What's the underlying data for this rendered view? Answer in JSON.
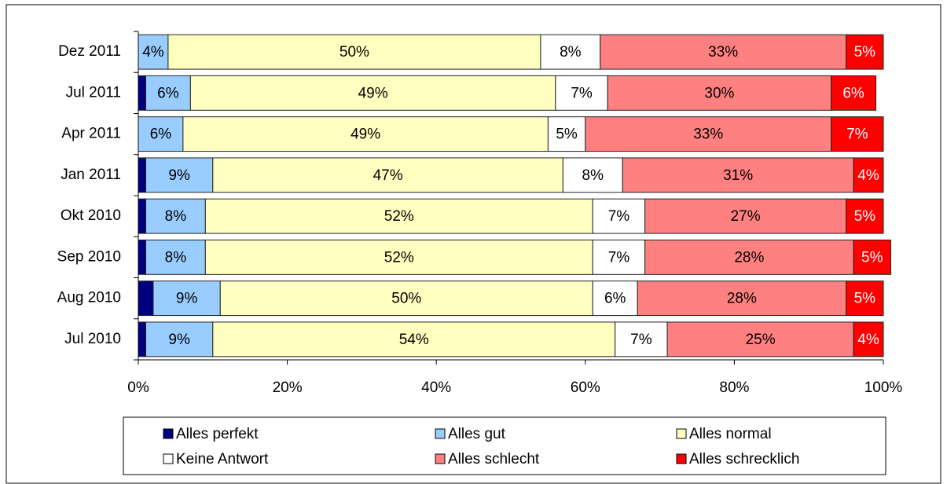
{
  "chart_data": {
    "type": "stacked_bar_horizontal",
    "categories": [
      "Dez 2011",
      "Jul 2011",
      "Apr 2011",
      "Jan 2011",
      "Okt 2010",
      "Sep 2010",
      "Aug 2010",
      "Jul 2010"
    ],
    "series": [
      {
        "name": "Alles perfekt",
        "color": "#000080",
        "values": [
          0,
          1,
          0,
          1,
          1,
          1,
          2,
          1
        ]
      },
      {
        "name": "Alles gut",
        "color": "#99ccff",
        "values": [
          4,
          6,
          6,
          9,
          8,
          8,
          9,
          9
        ],
        "value_labels": [
          "4%",
          "6%",
          "6%",
          "9%",
          "8%",
          "8%",
          "9%",
          "9%"
        ]
      },
      {
        "name": "Alles normal",
        "color": "#ffffc0",
        "values": [
          50,
          49,
          49,
          47,
          52,
          52,
          50,
          54
        ],
        "value_labels": [
          "50%",
          "49%",
          "49%",
          "47%",
          "52%",
          "52%",
          "50%",
          "54%"
        ]
      },
      {
        "name": "Keine Antwort",
        "color": "#ffffff",
        "values": [
          8,
          7,
          5,
          8,
          7,
          7,
          6,
          7
        ],
        "value_labels": [
          "8%",
          "7%",
          "5%",
          "8%",
          "7%",
          "7%",
          "6%",
          "7%"
        ]
      },
      {
        "name": "Alles schlecht",
        "color": "#ff8080",
        "values": [
          33,
          30,
          33,
          31,
          27,
          28,
          28,
          25
        ],
        "value_labels": [
          "33%",
          "30%",
          "33%",
          "31%",
          "27%",
          "28%",
          "28%",
          "25%"
        ]
      },
      {
        "name": "Alles schrecklich",
        "color": "#ff0000",
        "values": [
          5,
          6,
          7,
          4,
          5,
          5,
          5,
          4
        ],
        "value_labels": [
          "5%",
          "6%",
          "7%",
          "4%",
          "5%",
          "5%",
          "5%",
          "4%"
        ]
      }
    ],
    "xlim": [
      0,
      100
    ],
    "xticks": [
      {
        "value": 0,
        "label": "0%"
      },
      {
        "value": 20,
        "label": "20%"
      },
      {
        "value": 40,
        "label": "40%"
      },
      {
        "value": 60,
        "label": "60%"
      },
      {
        "value": 80,
        "label": "80%"
      },
      {
        "value": 100,
        "label": "100%"
      }
    ],
    "legend": "bottom"
  }
}
